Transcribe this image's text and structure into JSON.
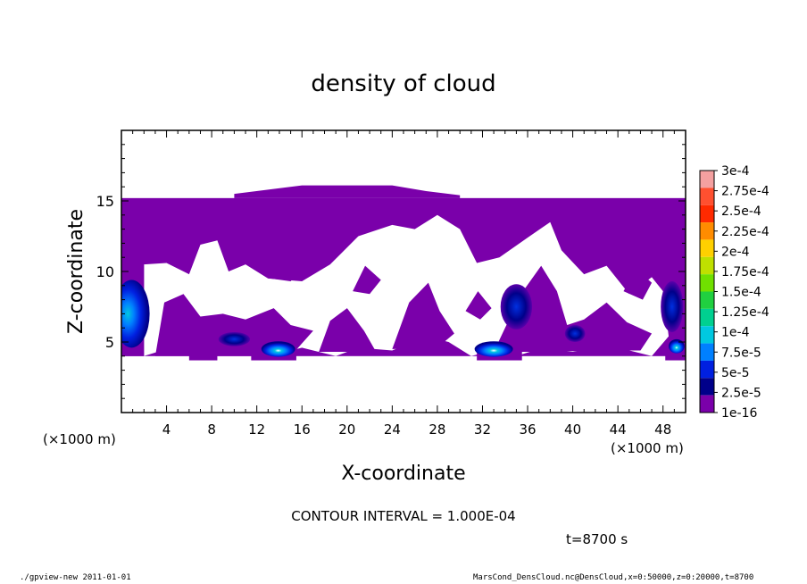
{
  "chart_data": {
    "type": "heatmap",
    "title": "density of cloud",
    "xlabel": "X-coordinate",
    "ylabel": "Z-coordinate",
    "x_unit": "(×1000 m)",
    "x_unit_left": "(×1000 m)",
    "xlim": [
      0,
      50
    ],
    "ylim": [
      0,
      20
    ],
    "x_ticks": [
      4,
      8,
      12,
      16,
      20,
      24,
      28,
      32,
      36,
      40,
      44,
      48
    ],
    "x_tick_labels": [
      "4",
      "8",
      "12",
      "16",
      "20",
      "24",
      "28",
      "32",
      "36",
      "40",
      "44",
      "48"
    ],
    "y_ticks": [
      5,
      10,
      15
    ],
    "y_tick_labels": [
      "5",
      "10",
      "15"
    ],
    "legend": {
      "placement": "right",
      "labels": [
        "3e-4",
        "2.75e-4",
        "2.5e-4",
        "2.25e-4",
        "2e-4",
        "1.75e-4",
        "1.5e-4",
        "1.25e-4",
        "1e-4",
        "7.5e-5",
        "5e-5",
        "2.5e-5",
        "1e-16"
      ],
      "colors": [
        "#f4a0a0",
        "#ff5030",
        "#ff2a00",
        "#ff8c00",
        "#ffd000",
        "#bfe000",
        "#70e000",
        "#20d040",
        "#00d090",
        "#00c8e0",
        "#0080ff",
        "#0020e0",
        "#00008a",
        "#7a00aa"
      ]
    },
    "cloud_base_color": "#7a00aa",
    "cloud_layer": {
      "z_min": 4,
      "z_top": 15.2,
      "top_bulge": [
        [
          10,
          15.5
        ],
        [
          16,
          16.1
        ],
        [
          20,
          16.1
        ],
        [
          24,
          16.1
        ],
        [
          27,
          15.7
        ],
        [
          30,
          15.4
        ]
      ]
    },
    "regions": [
      {
        "name": "left-edge-core",
        "x": 0.9,
        "z": 7.0,
        "rx": 1.6,
        "rz": 2.4,
        "level": "5e-5"
      },
      {
        "name": "core-x14",
        "x": 13.9,
        "z": 4.5,
        "rx": 1.5,
        "rz": 0.55,
        "level": "7.5e-5"
      },
      {
        "name": "core-x33",
        "x": 33.0,
        "z": 4.5,
        "rx": 1.7,
        "rz": 0.55,
        "level": "7.5e-5"
      },
      {
        "name": "core-x49",
        "x": 49.2,
        "z": 4.7,
        "rx": 0.7,
        "rz": 0.5,
        "level": "7.5e-5"
      },
      {
        "name": "patch-x10",
        "x": 10.0,
        "z": 5.2,
        "rx": 1.4,
        "rz": 0.5,
        "level": "2.5e-5"
      },
      {
        "name": "patch-x35",
        "x": 35.0,
        "z": 7.5,
        "rx": 1.4,
        "rz": 1.6,
        "level": "2.5e-5"
      },
      {
        "name": "patch-x40",
        "x": 40.2,
        "z": 5.6,
        "rx": 0.9,
        "rz": 0.6,
        "level": "2.5e-5"
      },
      {
        "name": "patch-x48",
        "x": 48.8,
        "z": 7.5,
        "rx": 1.0,
        "rz": 1.8,
        "level": "2.5e-5"
      }
    ]
  },
  "annotations": {
    "contour_interval": "CONTOUR INTERVAL = 1.000E-04",
    "time": "t=8700 s"
  },
  "footer": {
    "left": "./gpview-new   2011-01-01",
    "right": "MarsCond_DensCloud.nc@DensCloud,x=0:50000,z=0:20000,t=8700"
  }
}
